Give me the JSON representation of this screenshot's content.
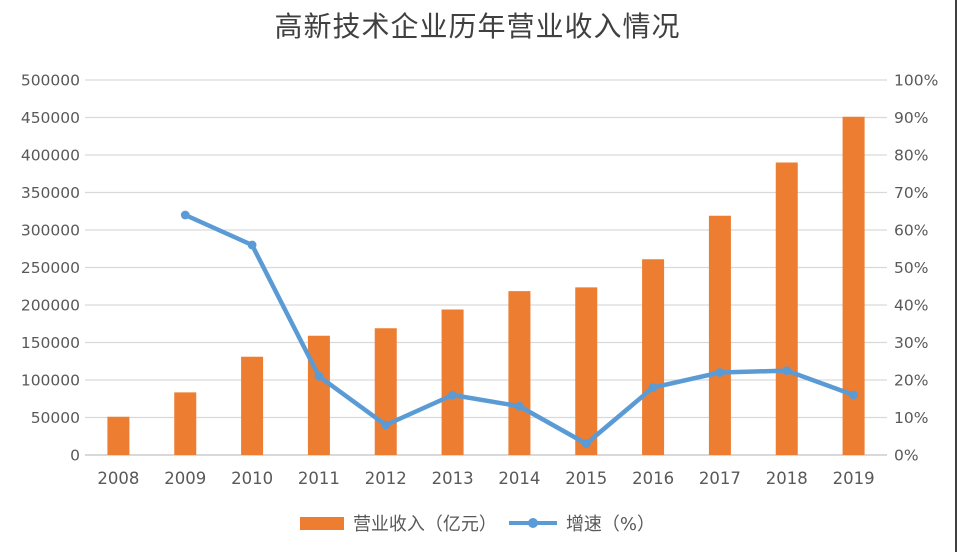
{
  "chart_data": {
    "type": "bar-line-combo",
    "title": "高新技术企业历年营业收入情况",
    "categories": [
      "2008",
      "2009",
      "2010",
      "2011",
      "2012",
      "2013",
      "2014",
      "2015",
      "2016",
      "2017",
      "2018",
      "2019"
    ],
    "series": [
      {
        "name": "营业收入（亿元）",
        "type": "bar",
        "axis": "left",
        "color": "#ED7D31",
        "values": [
          51000,
          83500,
          131000,
          159000,
          169000,
          194000,
          218500,
          223500,
          261000,
          319000,
          390000,
          451000
        ]
      },
      {
        "name": "增速（%）",
        "type": "line",
        "axis": "right",
        "color": "#5B9BD5",
        "values": [
          null,
          64,
          56,
          21,
          8,
          16,
          13,
          3,
          18,
          22,
          22.5,
          16
        ]
      }
    ],
    "left_axis": {
      "min": 0,
      "max": 500000,
      "step": 50000,
      "tick_labels": [
        "500000",
        "450000",
        "400000",
        "350000",
        "300000",
        "250000",
        "200000",
        "150000",
        "100000",
        "50000",
        "0"
      ]
    },
    "right_axis": {
      "min": 0,
      "max": 100,
      "step": 10,
      "tick_labels": [
        "100%",
        "90%",
        "80%",
        "70%",
        "60%",
        "50%",
        "40%",
        "30%",
        "20%",
        "10%",
        "0%"
      ]
    },
    "grid": true,
    "legend_position": "bottom"
  },
  "colors": {
    "bar": "#ED7D31",
    "line": "#5B9BD5",
    "gridline": "#D9D9D9",
    "axis_line": "#D9D9D9",
    "axis_text": "#595959",
    "title_text": "#404040",
    "frame_border": "#404040",
    "background": "#FFFFFF"
  }
}
